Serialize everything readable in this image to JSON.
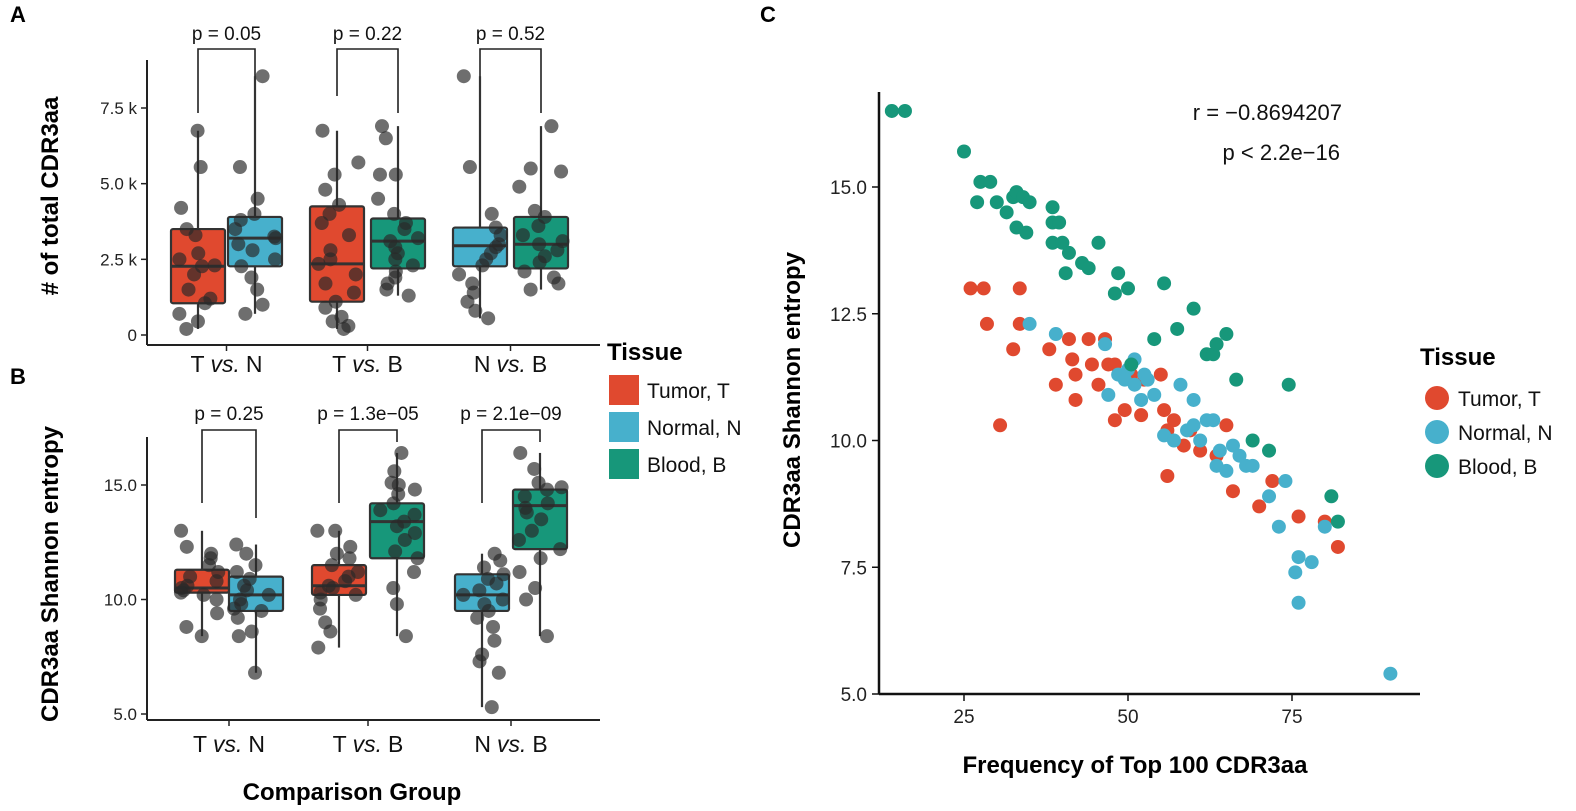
{
  "colors": {
    "tumor": "#e0492f",
    "normal": "#47b0cc",
    "blood": "#17977a",
    "point": "#2a2a2a"
  },
  "chart_data": [
    {
      "panel": "A",
      "type": "box",
      "ylabel": "# of total CDR3aa",
      "ylim": [
        0,
        9000
      ],
      "yticks": [
        0,
        2500,
        5000,
        7500
      ],
      "ytick_labels": [
        "0",
        "2.5 k",
        "5.0 k",
        "7.5 k"
      ],
      "groups": [
        {
          "label_left": "T",
          "label_vs": "vs.",
          "label_right": "N",
          "p_label": "p = 0.05",
          "boxes": [
            {
              "tissue": "tumor",
              "q1": 1050,
              "median": 2270,
              "q3": 3500,
              "whisker_low": 200,
              "whisker_high": 6750,
              "points": [
                6750,
                5550,
                4200,
                3500,
                3300,
                2700,
                2500,
                2300,
                2270,
                2000,
                1500,
                1200,
                1050,
                700,
                450,
                200
              ]
            },
            {
              "tissue": "normal",
              "q1": 2270,
              "median": 3200,
              "q3": 3900,
              "whisker_low": 700,
              "whisker_high": 8550,
              "points": [
                8550,
                5550,
                4500,
                4000,
                3800,
                3500,
                3250,
                3200,
                3000,
                2800,
                2500,
                2270,
                1900,
                1500,
                1000,
                700
              ]
            }
          ]
        },
        {
          "label_left": "T",
          "label_vs": "vs.",
          "label_right": "B",
          "p_label": "p = 0.22",
          "boxes": [
            {
              "tissue": "tumor",
              "q1": 1100,
              "median": 2350,
              "q3": 4250,
              "whisker_low": 200,
              "whisker_high": 6750,
              "points": [
                6750,
                5700,
                5300,
                4800,
                4300,
                4000,
                3700,
                3300,
                2800,
                2500,
                2350,
                2000,
                1700,
                1400,
                1100,
                900,
                600,
                450,
                300,
                200
              ]
            },
            {
              "tissue": "blood",
              "q1": 2200,
              "median": 3100,
              "q3": 3850,
              "whisker_low": 1300,
              "whisker_high": 6900,
              "points": [
                6900,
                6500,
                5300,
                5300,
                4500,
                4000,
                3700,
                3500,
                3200,
                3100,
                2900,
                2700,
                2500,
                2300,
                2100,
                1900,
                1700,
                1500,
                1300
              ]
            }
          ]
        },
        {
          "label_left": "N",
          "label_vs": "vs.",
          "label_right": "B",
          "p_label": "p = 0.52",
          "boxes": [
            {
              "tissue": "normal",
              "q1": 2270,
              "median": 2950,
              "q3": 3550,
              "whisker_low": 550,
              "whisker_high": 8550,
              "points": [
                8550,
                5550,
                4000,
                3550,
                3300,
                3000,
                2900,
                2700,
                2500,
                2300,
                2000,
                1700,
                1400,
                1100,
                800,
                550
              ]
            },
            {
              "tissue": "blood",
              "q1": 2200,
              "median": 3000,
              "q3": 3900,
              "whisker_low": 1500,
              "whisker_high": 6900,
              "points": [
                6900,
                5500,
                5400,
                4900,
                4100,
                3900,
                3600,
                3300,
                3100,
                3000,
                2800,
                2600,
                2400,
                2100,
                1900,
                1700,
                1500
              ]
            }
          ]
        }
      ]
    },
    {
      "panel": "B",
      "type": "box",
      "ylabel": "CDR3aa Shannon entropy",
      "xlabel": "Comparison Group",
      "ylim": [
        4.8,
        17
      ],
      "yticks": [
        5.0,
        10.0,
        15.0
      ],
      "ytick_labels": [
        "5.0",
        "10.0",
        "15.0"
      ],
      "groups": [
        {
          "label_left": "T",
          "label_vs": "vs.",
          "label_right": "N",
          "p_label": "p = 0.25",
          "boxes": [
            {
              "tissue": "tumor",
              "q1": 10.3,
              "median": 10.5,
              "q3": 11.3,
              "whisker_low": 8.4,
              "whisker_high": 13.0,
              "points": [
                13.0,
                12.3,
                12.0,
                11.8,
                11.5,
                11.2,
                11.0,
                10.8,
                10.6,
                10.5,
                10.4,
                10.3,
                10.2,
                10.0,
                9.4,
                8.8,
                8.4
              ]
            },
            {
              "tissue": "normal",
              "q1": 9.5,
              "median": 10.2,
              "q3": 11.0,
              "whisker_low": 6.8,
              "whisker_high": 12.4,
              "points": [
                12.4,
                12.0,
                11.5,
                11.2,
                10.9,
                10.6,
                10.4,
                10.2,
                10.0,
                9.8,
                9.6,
                9.5,
                9.2,
                8.6,
                8.4,
                6.8
              ]
            }
          ]
        },
        {
          "label_left": "T",
          "label_vs": "vs.",
          "label_right": "B",
          "p_label": "p = 1.3e−05",
          "boxes": [
            {
              "tissue": "tumor",
              "q1": 10.2,
              "median": 10.6,
              "q3": 11.5,
              "whisker_low": 7.9,
              "whisker_high": 13.0,
              "points": [
                13.0,
                13.0,
                12.3,
                12.0,
                11.8,
                11.5,
                11.2,
                11.0,
                10.8,
                10.6,
                10.5,
                10.3,
                10.2,
                10.0,
                9.6,
                9.0,
                8.6,
                7.9
              ]
            },
            {
              "tissue": "blood",
              "q1": 11.8,
              "median": 13.4,
              "q3": 14.2,
              "whisker_low": 8.4,
              "whisker_high": 16.4,
              "points": [
                16.4,
                15.6,
                15.1,
                15.0,
                14.8,
                14.6,
                14.2,
                13.9,
                13.7,
                13.4,
                13.2,
                12.9,
                12.6,
                12.1,
                11.8,
                11.2,
                10.5,
                9.8,
                8.4
              ]
            }
          ]
        },
        {
          "label_left": "N",
          "label_vs": "vs.",
          "label_right": "B",
          "p_label": "p = 2.1e−09",
          "boxes": [
            {
              "tissue": "normal",
              "q1": 9.5,
              "median": 10.2,
              "q3": 11.1,
              "whisker_low": 5.3,
              "whisker_high": 12.0,
              "points": [
                12.0,
                11.7,
                11.4,
                11.1,
                10.9,
                10.7,
                10.4,
                10.2,
                10.0,
                9.8,
                9.5,
                9.2,
                8.8,
                8.2,
                7.6,
                7.3,
                6.8,
                5.3
              ]
            },
            {
              "tissue": "blood",
              "q1": 12.2,
              "median": 14.1,
              "q3": 14.8,
              "whisker_low": 8.4,
              "whisker_high": 16.4,
              "points": [
                16.4,
                15.7,
                15.1,
                14.9,
                14.8,
                14.5,
                14.2,
                14.0,
                13.8,
                13.5,
                13.0,
                12.6,
                12.2,
                11.8,
                11.2,
                10.5,
                10.0,
                8.4
              ]
            }
          ]
        }
      ]
    },
    {
      "panel": "C",
      "type": "scatter",
      "xlabel": "Frequency of Top 100 CDR3aa",
      "ylabel": "CDR3aa Shannon entropy",
      "xlim": [
        13,
        94
      ],
      "ylim": [
        5.0,
        17.0
      ],
      "xticks": [
        25,
        50,
        75
      ],
      "yticks": [
        5.0,
        7.5,
        10.0,
        12.5,
        15.0
      ],
      "ytick_labels": [
        "5.0",
        "7.5",
        "10.0",
        "12.5",
        "15.0"
      ],
      "annotation_r": "r = −0.8694207",
      "annotation_p": "p < 2.2e−16",
      "series": [
        {
          "name": "Tumor, T",
          "tissue": "tumor",
          "points": [
            [
              26,
              13.0
            ],
            [
              28,
              13.0
            ],
            [
              33.5,
              13.0
            ],
            [
              28.5,
              12.3
            ],
            [
              33.5,
              12.3
            ],
            [
              32.5,
              11.8
            ],
            [
              30.5,
              10.3
            ],
            [
              38,
              11.8
            ],
            [
              41,
              12.0
            ],
            [
              44,
              12.0
            ],
            [
              46.5,
              12.0
            ],
            [
              41.5,
              11.6
            ],
            [
              44.5,
              11.5
            ],
            [
              47,
              11.5
            ],
            [
              42,
              11.3
            ],
            [
              45.5,
              11.1
            ],
            [
              48,
              11.5
            ],
            [
              50.5,
              11.3
            ],
            [
              52.5,
              11.2
            ],
            [
              55,
              11.3
            ],
            [
              39,
              11.1
            ],
            [
              42,
              10.8
            ],
            [
              48,
              10.4
            ],
            [
              49.5,
              10.6
            ],
            [
              52,
              10.5
            ],
            [
              55.5,
              10.6
            ],
            [
              57,
              10.4
            ],
            [
              56,
              10.2
            ],
            [
              59.5,
              10.2
            ],
            [
              61,
              9.8
            ],
            [
              63.5,
              9.7
            ],
            [
              65,
              10.3
            ],
            [
              58.5,
              9.9
            ],
            [
              56,
              9.3
            ],
            [
              66,
              9.0
            ],
            [
              70,
              8.7
            ],
            [
              72,
              9.2
            ],
            [
              76,
              8.5
            ],
            [
              80,
              8.4
            ],
            [
              82,
              7.9
            ]
          ]
        },
        {
          "name": "Normal, N",
          "tissue": "normal",
          "points": [
            [
              35,
              12.3
            ],
            [
              39,
              12.1
            ],
            [
              46.5,
              11.9
            ],
            [
              48.5,
              11.3
            ],
            [
              50,
              11.4
            ],
            [
              51,
              11.6
            ],
            [
              52.5,
              11.3
            ],
            [
              49.5,
              11.2
            ],
            [
              51,
              11.1
            ],
            [
              53,
              11.2
            ],
            [
              52,
              10.8
            ],
            [
              54,
              10.9
            ],
            [
              58,
              11.1
            ],
            [
              47,
              10.9
            ],
            [
              60,
              10.8
            ],
            [
              62,
              10.4
            ],
            [
              55.5,
              10.1
            ],
            [
              57,
              10.0
            ],
            [
              59,
              10.2
            ],
            [
              60,
              10.3
            ],
            [
              61,
              10.0
            ],
            [
              63,
              10.4
            ],
            [
              64,
              9.8
            ],
            [
              66,
              9.9
            ],
            [
              67,
              9.7
            ],
            [
              68,
              9.5
            ],
            [
              69,
              9.5
            ],
            [
              63.5,
              9.5
            ],
            [
              65,
              9.4
            ],
            [
              71.5,
              8.9
            ],
            [
              74,
              9.2
            ],
            [
              80,
              8.3
            ],
            [
              73,
              8.3
            ],
            [
              76,
              7.7
            ],
            [
              78,
              7.6
            ],
            [
              75.5,
              7.4
            ],
            [
              76,
              6.8
            ],
            [
              90,
              5.4
            ]
          ]
        },
        {
          "name": "Blood, B",
          "tissue": "blood",
          "points": [
            [
              14,
              16.5
            ],
            [
              16,
              16.5
            ],
            [
              25,
              15.7
            ],
            [
              27.5,
              15.1
            ],
            [
              29,
              15.1
            ],
            [
              27,
              14.7
            ],
            [
              30,
              14.7
            ],
            [
              31.5,
              14.5
            ],
            [
              32.5,
              14.8
            ],
            [
              33,
              14.9
            ],
            [
              34,
              14.8
            ],
            [
              35,
              14.7
            ],
            [
              38.5,
              14.6
            ],
            [
              33,
              14.2
            ],
            [
              34.5,
              14.1
            ],
            [
              38.5,
              14.3
            ],
            [
              39.5,
              14.3
            ],
            [
              38.5,
              13.9
            ],
            [
              40,
              13.9
            ],
            [
              41,
              13.7
            ],
            [
              43,
              13.5
            ],
            [
              44,
              13.4
            ],
            [
              45.5,
              13.9
            ],
            [
              40.5,
              13.3
            ],
            [
              48.5,
              13.3
            ],
            [
              50,
              13.0
            ],
            [
              48,
              12.9
            ],
            [
              55.5,
              13.1
            ],
            [
              60,
              12.6
            ],
            [
              54,
              12.0
            ],
            [
              57.5,
              12.2
            ],
            [
              62,
              11.7
            ],
            [
              63,
              11.7
            ],
            [
              63.5,
              11.9
            ],
            [
              65,
              12.1
            ],
            [
              66.5,
              11.2
            ],
            [
              50.5,
              11.5
            ],
            [
              69,
              10.0
            ],
            [
              71.5,
              9.8
            ],
            [
              74.5,
              11.1
            ],
            [
              81,
              8.9
            ],
            [
              82,
              8.4
            ]
          ]
        }
      ]
    }
  ],
  "legend": {
    "title": "Tissue",
    "items": [
      "Tumor, T",
      "Normal, N",
      "Blood, B"
    ]
  }
}
